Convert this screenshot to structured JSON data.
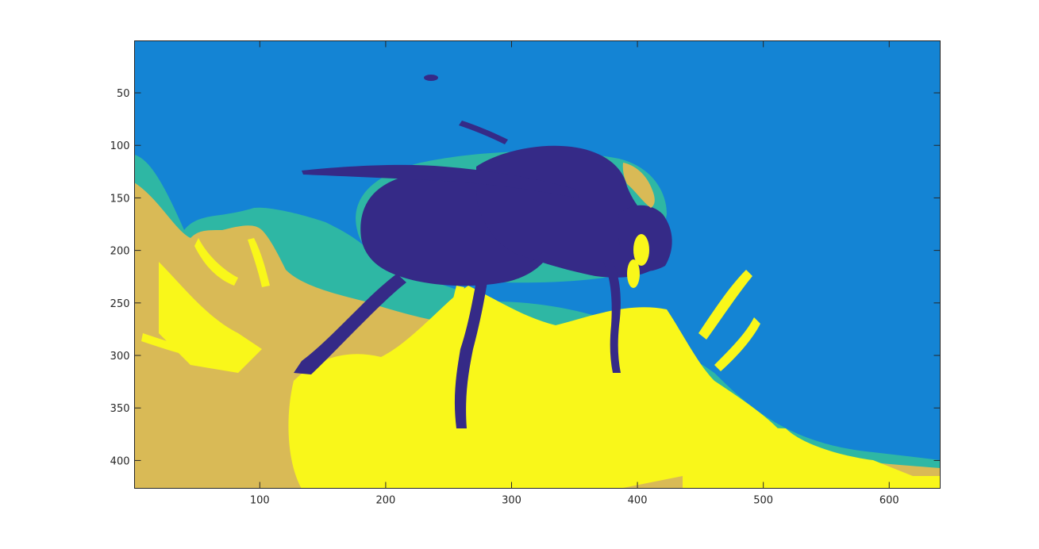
{
  "chart_data": {
    "type": "heatmap",
    "title": "",
    "xlabel": "",
    "ylabel": "",
    "xlim": [
      0.5,
      640.5
    ],
    "ylim": [
      0.5,
      426.5
    ],
    "y_direction": "reverse",
    "grid": false,
    "legend": "none",
    "x_ticks": [
      100,
      200,
      300,
      400,
      500,
      600
    ],
    "x_tick_labels": [
      "100",
      "200",
      "300",
      "400",
      "500",
      "600"
    ],
    "y_ticks": [
      50,
      100,
      150,
      200,
      250,
      300,
      350,
      400
    ],
    "y_tick_labels": [
      "50",
      "100",
      "150",
      "200",
      "250",
      "300",
      "350",
      "400"
    ],
    "colormap": [
      "#352a87",
      "#1484d4",
      "#2eb7a4",
      "#d9ba56",
      "#f9f71a"
    ],
    "image_description": "quantized (5-level) image of a bumblebee on yellow flowers"
  }
}
